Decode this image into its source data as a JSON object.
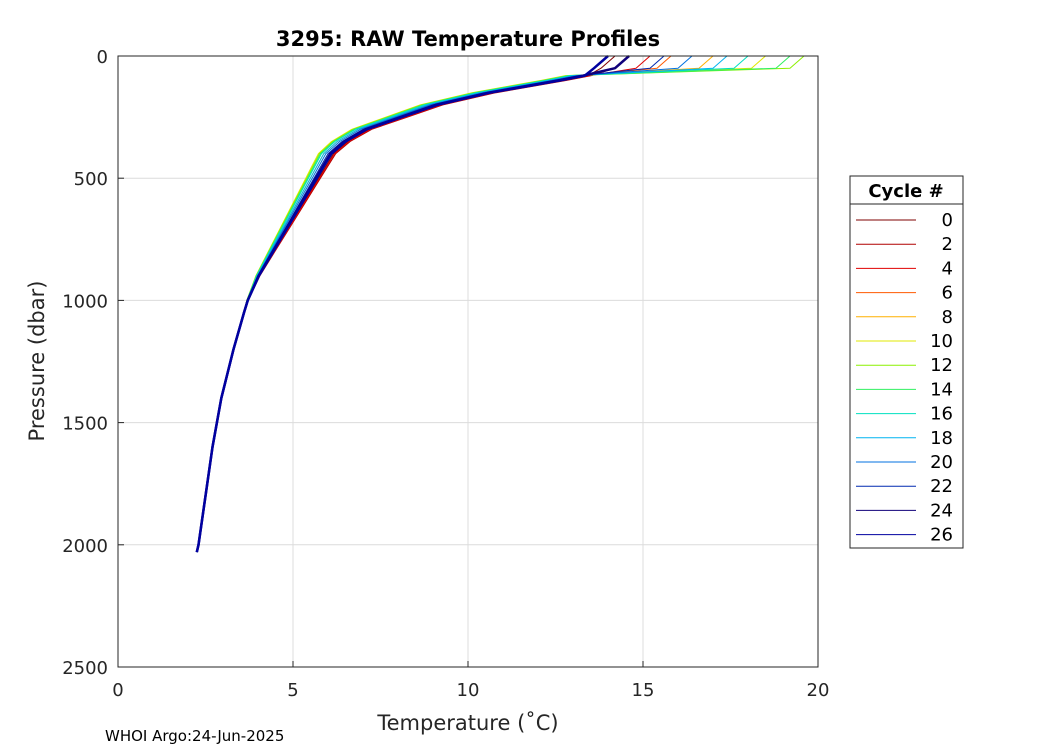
{
  "chart_data": {
    "type": "line",
    "title": "3295: RAW Temperature Profiles",
    "xlabel": "Temperature (˚C)",
    "ylabel": "Pressure (dbar)",
    "xlim": [
      0,
      20
    ],
    "ylim": [
      0,
      2500
    ],
    "y_reversed": true,
    "grid": true,
    "x_ticks": [
      0,
      5,
      10,
      15,
      20
    ],
    "y_ticks": [
      0,
      500,
      1000,
      1500,
      2000,
      2500
    ],
    "legend": {
      "title": "Cycle #",
      "placement": "right",
      "entries": [
        {
          "label": "0",
          "color": "#7f0000"
        },
        {
          "label": "2",
          "color": "#b00000"
        },
        {
          "label": "4",
          "color": "#e00000"
        },
        {
          "label": "6",
          "color": "#ff5a00"
        },
        {
          "label": "8",
          "color": "#ffb000"
        },
        {
          "label": "10",
          "color": "#e0e800"
        },
        {
          "label": "12",
          "color": "#8cf000"
        },
        {
          "label": "14",
          "color": "#30f060"
        },
        {
          "label": "16",
          "color": "#00e0c0"
        },
        {
          "label": "18",
          "color": "#00b4f0"
        },
        {
          "label": "20",
          "color": "#0070e0"
        },
        {
          "label": "22",
          "color": "#0028b0"
        },
        {
          "label": "24",
          "color": "#10007a"
        },
        {
          "label": "26",
          "color": "#0000a0"
        }
      ]
    },
    "profiles": [
      {
        "cycle": "0",
        "surface_temp": 14.2,
        "shift": 0.25
      },
      {
        "cycle": "2",
        "surface_temp": 14.6,
        "shift": 0.35
      },
      {
        "cycle": "4",
        "surface_temp": 15.2,
        "shift": 0.3
      },
      {
        "cycle": "6",
        "surface_temp": 15.8,
        "shift": 0.1
      },
      {
        "cycle": "8",
        "surface_temp": 17.0,
        "shift": -0.2
      },
      {
        "cycle": "10",
        "surface_temp": 18.5,
        "shift": -0.45
      },
      {
        "cycle": "12",
        "surface_temp": 19.6,
        "shift": -0.4
      },
      {
        "cycle": "14",
        "surface_temp": 19.2,
        "shift": -0.35
      },
      {
        "cycle": "16",
        "surface_temp": 18.0,
        "shift": -0.3
      },
      {
        "cycle": "18",
        "surface_temp": 17.4,
        "shift": -0.2
      },
      {
        "cycle": "20",
        "surface_temp": 16.4,
        "shift": -0.1
      },
      {
        "cycle": "22",
        "surface_temp": 15.6,
        "shift": 0.0
      },
      {
        "cycle": "24",
        "surface_temp": 14.6,
        "shift": 0.1
      },
      {
        "cycle": "26",
        "surface_temp": 14.0,
        "shift": 0.15
      }
    ],
    "base_profile": {
      "pressure": [
        0,
        50,
        80,
        100,
        150,
        200,
        250,
        300,
        350,
        400,
        450,
        500,
        600,
        700,
        800,
        900,
        1000,
        1050,
        1200,
        1400,
        1600,
        1800,
        2000,
        2030
      ],
      "temperature": [
        14.0,
        13.8,
        13.2,
        12.5,
        10.5,
        9.0,
        8.0,
        7.0,
        6.4,
        6.0,
        5.8,
        5.6,
        5.2,
        4.8,
        4.4,
        4.0,
        3.7,
        3.6,
        3.3,
        2.95,
        2.7,
        2.5,
        2.3,
        2.25
      ]
    }
  },
  "footer": {
    "text": "WHOI Argo:24-Jun-2025"
  }
}
